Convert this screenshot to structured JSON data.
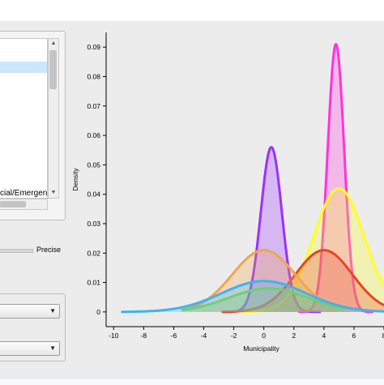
{
  "left_panel": {
    "list_items": [
      "",
      "",
      "",
      "",
      "",
      "",
      "",
      "",
      "",
      "",
      "",
      "cial/Emergenc"
    ],
    "selected_index": 1
  },
  "slider": {
    "label": "Precise"
  },
  "combos": [
    "",
    ""
  ],
  "chart_data": {
    "type": "area",
    "xlabel": "Municipality",
    "ylabel": "Density",
    "xlim": [
      -10.5,
      8
    ],
    "ylim": [
      -0.005,
      0.095
    ],
    "x_ticks": [
      "-10",
      "-8",
      "-6",
      "-4",
      "-2",
      "0",
      "2",
      "4",
      "6",
      "8"
    ],
    "y_ticks": [
      "0",
      "0.01",
      "0.02",
      "0.03",
      "0.04",
      "0.05",
      "0.06",
      "0.07",
      "0.08",
      "0.09"
    ],
    "grid": false,
    "series": [
      {
        "color": "#9b30ff",
        "mean": 0.5,
        "sd": 0.7,
        "peak": 0.056,
        "x_range": [
          -2.8,
          3.8
        ]
      },
      {
        "color": "#ff33dd",
        "mean": 4.8,
        "sd": 0.55,
        "peak": 0.091,
        "x_range": [
          2.3,
          7.3
        ]
      },
      {
        "color": "#ffff22",
        "mean": 5.0,
        "sd": 1.7,
        "peak": 0.042,
        "x_range": [
          -1.5,
          8
        ]
      },
      {
        "color": "#e8442a",
        "mean": 4.0,
        "sd": 1.9,
        "peak": 0.021,
        "x_range": [
          -2.8,
          8
        ]
      },
      {
        "color": "#f2a64a",
        "mean": 0.0,
        "sd": 2.1,
        "peak": 0.021,
        "x_range": [
          -5.5,
          5
        ]
      },
      {
        "color": "#7ddc4a",
        "mean": 0.3,
        "sd": 2.6,
        "peak": 0.008,
        "x_range": [
          -5.5,
          5.5
        ]
      },
      {
        "color": "#3db3f2",
        "mean": 0.0,
        "sd": 2.8,
        "peak": 0.0105,
        "x_range": [
          -9.5,
          8
        ]
      }
    ]
  }
}
